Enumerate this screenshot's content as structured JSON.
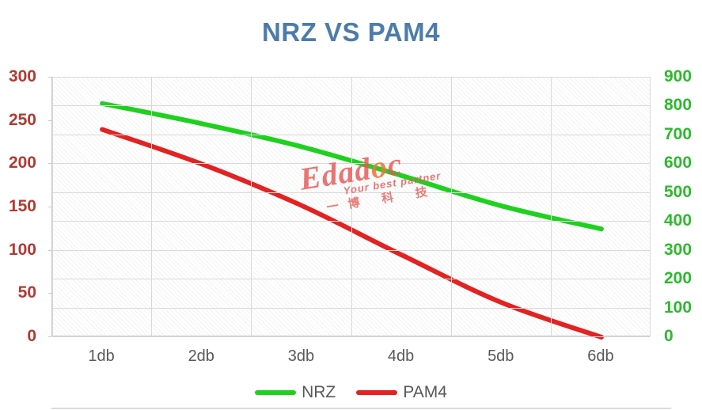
{
  "title": {
    "text": "NRZ VS PAM4",
    "color": "#4c7cab"
  },
  "chart_data": {
    "type": "line",
    "title": "NRZ VS PAM4",
    "categories": [
      "1db",
      "2db",
      "3db",
      "4db",
      "5db",
      "6db"
    ],
    "series": [
      {
        "name": "NRZ",
        "axis": "right",
        "color": "#1fd11f",
        "values": [
          810,
          740,
          660,
          560,
          455,
          375
        ]
      },
      {
        "name": "PAM4",
        "axis": "left",
        "color": "#e32222",
        "values": [
          240,
          200,
          152,
          95,
          40,
          0
        ]
      }
    ],
    "left_axis": {
      "min": 0,
      "max": 300,
      "step": 50,
      "color": "#b23a32",
      "ticks": [
        300,
        250,
        200,
        150,
        100,
        50,
        0
      ]
    },
    "right_axis": {
      "min": 0,
      "max": 900,
      "step": 100,
      "color": "#2eb82e",
      "ticks": [
        900,
        800,
        700,
        600,
        500,
        400,
        300,
        200,
        100,
        0
      ]
    },
    "grid": true,
    "smoothed": true,
    "legend_position": "bottom",
    "x_label_color": "#595959",
    "gridline_color": "#d9d9d9"
  },
  "legend": {
    "items": [
      {
        "label": "NRZ",
        "color": "#1fd11f"
      },
      {
        "label": "PAM4",
        "color": "#e32222"
      }
    ],
    "text_color": "#595959"
  },
  "watermark": {
    "brand": "Edadoc",
    "tagline": "Your best partner",
    "cjk": "一博 科 技"
  }
}
